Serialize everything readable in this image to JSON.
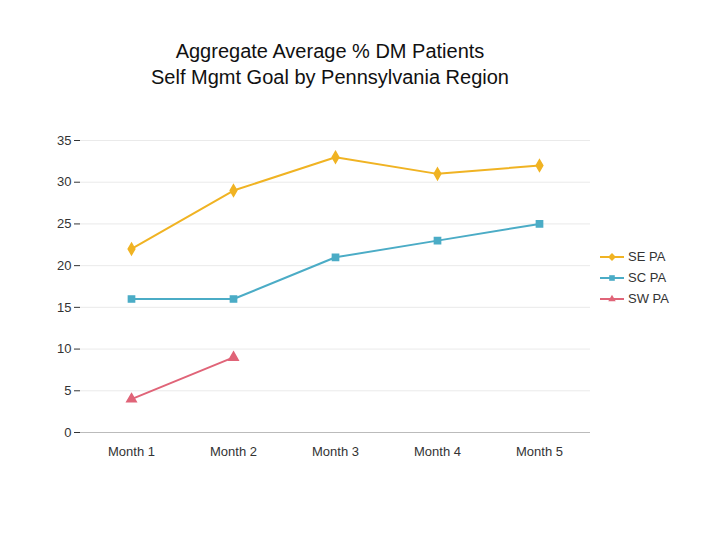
{
  "chart_data": {
    "type": "line",
    "title": "Aggregate Average % DM Patients\nSelf Mgmt Goal by Pennsylvania Region",
    "categories": [
      "Month 1",
      "Month 2",
      "Month 3",
      "Month 4",
      "Month 5"
    ],
    "series": [
      {
        "name": "SE PA",
        "color": "#f0b323",
        "marker": "diamond",
        "values": [
          22,
          29,
          33,
          31,
          32
        ]
      },
      {
        "name": "SC PA",
        "color": "#4bacc6",
        "marker": "square",
        "values": [
          16,
          16,
          21,
          23,
          25
        ]
      },
      {
        "name": "SW PA",
        "color": "#e06478",
        "marker": "triangle",
        "values": [
          4,
          9,
          null,
          null,
          null
        ]
      }
    ],
    "ylim": [
      0,
      35
    ],
    "yticks": [
      0,
      5,
      10,
      15,
      20,
      25,
      30,
      35
    ],
    "grid": true,
    "legend": "right"
  }
}
